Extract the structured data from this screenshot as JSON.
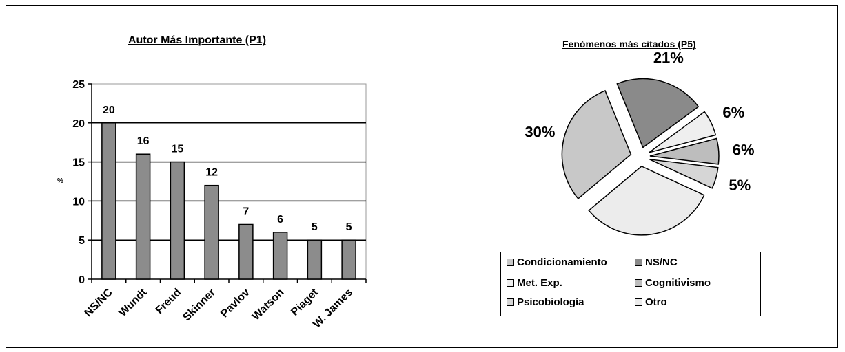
{
  "chart_data": [
    {
      "type": "bar",
      "title": "Autor Más Importante (P1)",
      "ylabel": "%",
      "categories": [
        "NS/NC",
        "Wundt",
        "Freud",
        "Skinner",
        "Pavlov",
        "Watson",
        "Piaget",
        "W. James"
      ],
      "values": [
        20,
        16,
        15,
        12,
        7,
        6,
        5,
        5
      ],
      "data_labels": [
        "20",
        "16",
        "15",
        "12",
        "7",
        "6",
        "5",
        "5"
      ],
      "yticks": [
        "0",
        "5",
        "10",
        "15",
        "20",
        "25"
      ],
      "ylim": [
        0,
        25
      ],
      "grid": true,
      "bar_color": "#8c8c8c"
    },
    {
      "type": "pie",
      "title": "Fenómenos más citados (P5)",
      "slices": [
        {
          "name": "Condicionamiento",
          "value": 30,
          "label": "30%",
          "color": "#c8c8c8"
        },
        {
          "name": "NS/NC",
          "value": 21,
          "label": "21%",
          "color": "#8a8a8a"
        },
        {
          "name": "Met. Exp.",
          "value": 6,
          "label": "6%",
          "color": "#efefef"
        },
        {
          "name": "Cognitivismo",
          "value": 6,
          "label": "6%",
          "color": "#bdbdbd"
        },
        {
          "name": "Psicobiología",
          "value": 5,
          "label": "5%",
          "color": "#d6d6d6"
        },
        {
          "name": "Otro",
          "value": 32,
          "label": "32%",
          "color": "#ececec"
        }
      ],
      "legend": [
        {
          "label": "Condicionamiento",
          "color": "#c8c8c8"
        },
        {
          "label": "NS/NC",
          "color": "#8a8a8a"
        },
        {
          "label": "Met. Exp.",
          "color": "#efefef"
        },
        {
          "label": "Cognitivismo",
          "color": "#bdbdbd"
        },
        {
          "label": "Psicobiología",
          "color": "#d6d6d6"
        },
        {
          "label": "Otro",
          "color": "#ececec"
        }
      ],
      "legend_position": "bottom"
    }
  ]
}
